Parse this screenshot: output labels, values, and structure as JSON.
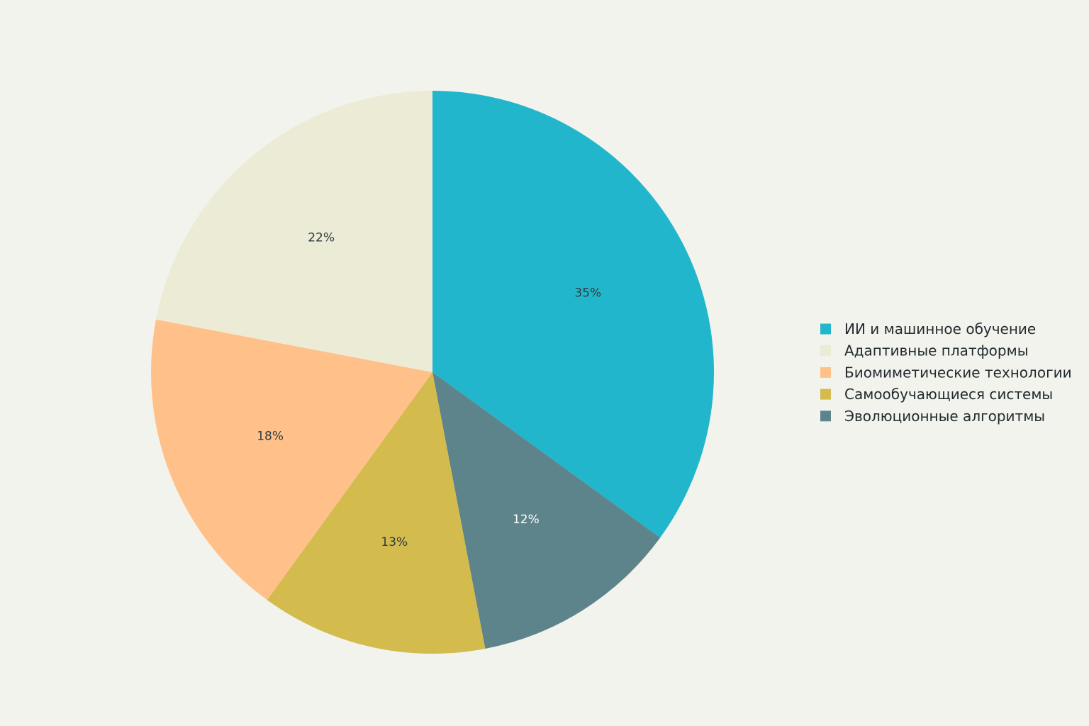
{
  "chart_data": {
    "type": "pie",
    "start": "12 o'clock",
    "direction": "clockwise",
    "legend_position": "right",
    "labels": [
      "ИИ и машинное обучение",
      "Адаптивные платформы",
      "Биомиметические технологии",
      "Самообучающиеся системы",
      "Эволюционные алгоритмы"
    ],
    "slice_order": [
      "ИИ и машинное обучение",
      "Эволюционные алгоритмы",
      "Самообучающиеся системы",
      "Биомиметические технологии",
      "Адаптивные платформы"
    ],
    "values": {
      "ИИ и машинное обучение": 35,
      "Адаптивные платформы": 22,
      "Биомиметические технологии": 18,
      "Самообучающиеся системы": 13,
      "Эволюционные алгоритмы": 12
    },
    "value_labels": {
      "ИИ и машинное обучение": "35%",
      "Адаптивные платформы": "22%",
      "Биомиметические технологии": "18%",
      "Самообучающиеся системы": "13%",
      "Эволюционные алгоритмы": "12%"
    },
    "colors": {
      "ИИ и машинное обучение": "#22b6cc",
      "Адаптивные платформы": "#ecebd6",
      "Биомиметические технологии": "#ffc189",
      "Самообучающиеся системы": "#d3bb4d",
      "Эволюционные алгоритмы": "#5d848b"
    },
    "label_colors": {
      "ИИ и машинное обучение": "#2e3c40",
      "Адаптивные платформы": "#2e3c40",
      "Биомиметические технологии": "#2e3c40",
      "Самообучающиеся системы": "#2e3c40",
      "Эволюционные алгоритмы": "#ffffff"
    }
  }
}
